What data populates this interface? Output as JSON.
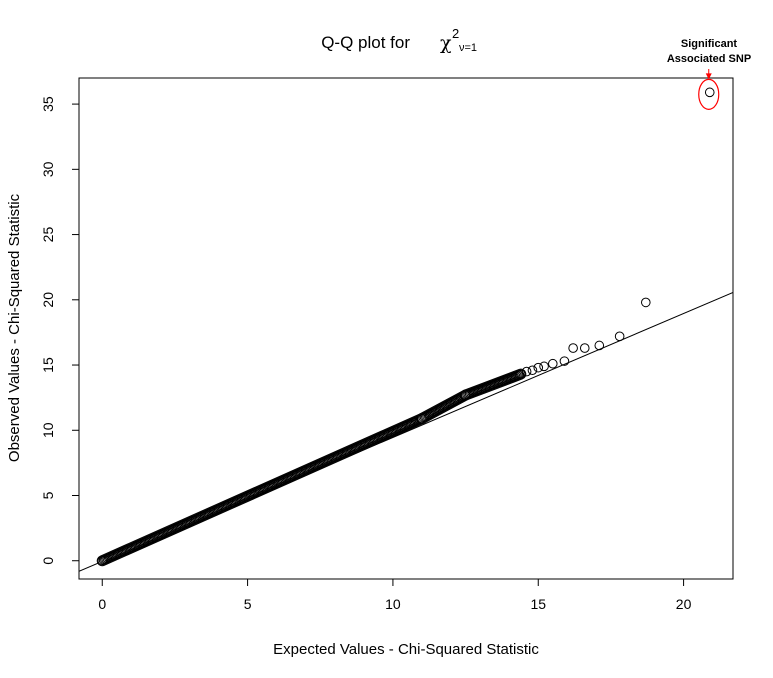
{
  "chart_data": {
    "type": "scatter",
    "title": "Q-Q plot for",
    "title_symbol": "χ",
    "title_superscript": "2",
    "title_subscript": "ν=1",
    "xlabel": "Expected Values - Chi-Squared Statistic",
    "ylabel": "Observed Values - Chi-Squared Statistic",
    "xlim": [
      -0.8,
      21.7
    ],
    "ylim": [
      -1.4,
      37.0
    ],
    "x_ticks": [
      0,
      5,
      10,
      15,
      20
    ],
    "y_ticks": [
      0,
      5,
      10,
      15,
      20,
      25,
      30,
      35
    ],
    "grid": false,
    "reference_line": {
      "slope": 0.95,
      "intercept": -0.05
    },
    "dense_segments": [
      {
        "x": [
          0,
          11.0
        ],
        "y": [
          0,
          10.9
        ]
      },
      {
        "x": [
          11.0,
          12.5
        ],
        "y": [
          10.9,
          12.7
        ]
      },
      {
        "x": [
          12.5,
          14.4
        ],
        "y": [
          12.7,
          14.3
        ]
      }
    ],
    "points": [
      {
        "x": 14.6,
        "y": 14.5
      },
      {
        "x": 14.8,
        "y": 14.6
      },
      {
        "x": 15.0,
        "y": 14.8
      },
      {
        "x": 15.2,
        "y": 14.9
      },
      {
        "x": 15.5,
        "y": 15.1
      },
      {
        "x": 15.9,
        "y": 15.3
      },
      {
        "x": 16.2,
        "y": 16.3
      },
      {
        "x": 16.6,
        "y": 16.3
      },
      {
        "x": 17.1,
        "y": 16.5
      },
      {
        "x": 17.8,
        "y": 17.2
      },
      {
        "x": 18.7,
        "y": 19.8
      },
      {
        "x": 20.9,
        "y": 35.9
      }
    ],
    "annotation": {
      "text_line1": "Significant",
      "text_line2": "Associated SNP",
      "target": {
        "x": 20.9,
        "y": 35.9
      },
      "color": "#ff0000"
    }
  }
}
